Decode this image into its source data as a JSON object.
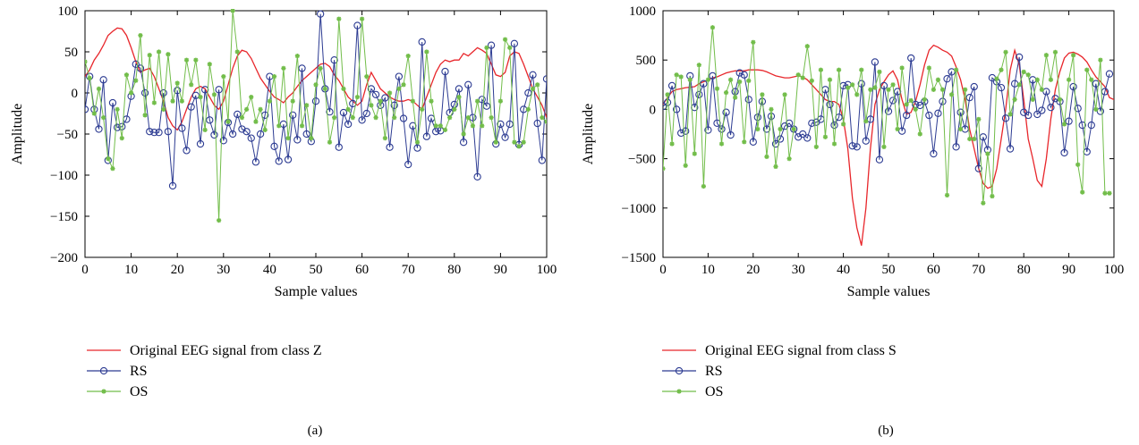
{
  "chart_data": [
    {
      "type": "line",
      "panel_label": "(a)",
      "xlabel": "Sample values",
      "ylabel": "Amplitude",
      "xlim": [
        0,
        100
      ],
      "ylim": [
        -200,
        100
      ],
      "xticks": [
        0,
        10,
        20,
        30,
        40,
        50,
        60,
        70,
        80,
        90,
        100
      ],
      "yticks": [
        -200,
        -150,
        -100,
        -50,
        0,
        50,
        100
      ],
      "xtick_labels": [
        "0",
        "10",
        "20",
        "30",
        "40",
        "50",
        "60",
        "70",
        "80",
        "90",
        "100"
      ],
      "ytick_labels": [
        "−200",
        "−150",
        "−100",
        "−50",
        "0",
        "50",
        "100"
      ],
      "grid": false,
      "legend_position": "below",
      "series": [
        {
          "name": "Original EEG signal from class Z",
          "color": "#e8262b",
          "marker": "none",
          "values": [
            20,
            28,
            40,
            48,
            58,
            70,
            75,
            79,
            78,
            70,
            55,
            38,
            25,
            28,
            30,
            20,
            5,
            -10,
            -30,
            -40,
            -45,
            -35,
            -20,
            -5,
            5,
            8,
            5,
            -5,
            -15,
            -20,
            -10,
            10,
            30,
            45,
            52,
            50,
            42,
            30,
            18,
            10,
            2,
            -5,
            -8,
            -12,
            -5,
            0,
            8,
            15,
            20,
            25,
            30,
            35,
            36,
            32,
            22,
            15,
            5,
            -5,
            -10,
            -15,
            -10,
            10,
            25,
            15,
            5,
            0,
            -5,
            -8,
            -10,
            -10,
            -8,
            -10,
            -15,
            -20,
            -5,
            10,
            25,
            35,
            40,
            38,
            40,
            40,
            48,
            45,
            50,
            55,
            52,
            48,
            35,
            22,
            20,
            25,
            45,
            50,
            48,
            35,
            20,
            5,
            -5,
            -15,
            -30
          ]
        },
        {
          "name": "RS",
          "color": "#2c3b92",
          "marker": "circle",
          "values": [
            -20,
            20,
            -20,
            -44,
            16,
            -82,
            -12,
            -42,
            -41,
            -32,
            -4,
            35,
            30,
            0,
            -47,
            -48,
            -48,
            0,
            -47,
            -113,
            3,
            -43,
            -70,
            -17,
            -3,
            -62,
            4,
            -33,
            -51,
            4,
            -58,
            -36,
            -50,
            -26,
            -44,
            -47,
            -55,
            -84,
            -50,
            -27,
            20,
            -65,
            -83,
            -38,
            -81,
            -27,
            -57,
            30,
            -50,
            -59,
            -10,
            96,
            5,
            -23,
            40,
            -66,
            -24,
            -38,
            -13,
            82,
            -33,
            -25,
            5,
            -2,
            -15,
            -6,
            -66,
            -15,
            20,
            -31,
            -87,
            -40,
            -67,
            62,
            -53,
            -31,
            -47,
            -46,
            26,
            -24,
            -14,
            5,
            -60,
            10,
            -30,
            -102,
            -8,
            -16,
            58,
            -62,
            -38,
            -54,
            -38,
            60,
            -63,
            -20,
            0,
            22,
            -37,
            -82,
            17
          ]
        },
        {
          "name": "OS",
          "color": "#72bd4a",
          "marker": "star",
          "values": [
            38,
            18,
            -25,
            5,
            -30,
            -80,
            -92,
            -20,
            -55,
            22,
            0,
            15,
            70,
            -27,
            46,
            -12,
            50,
            -20,
            47,
            -10,
            12,
            -10,
            40,
            10,
            40,
            -5,
            -45,
            35,
            -2,
            -155,
            20,
            -35,
            100,
            50,
            -30,
            -20,
            -5,
            -35,
            -20,
            -45,
            -10,
            20,
            -40,
            30,
            -55,
            -10,
            45,
            -40,
            -15,
            -55,
            10,
            30,
            5,
            -60,
            -30,
            90,
            5,
            -20,
            -30,
            -5,
            90,
            20,
            -15,
            -30,
            -10,
            -55,
            0,
            -30,
            5,
            10,
            45,
            -10,
            -60,
            -20,
            50,
            -10,
            -40,
            -40,
            -45,
            -30,
            -20,
            -5,
            -50,
            -30,
            -40,
            -10,
            -40,
            55,
            -30,
            -60,
            -10,
            65,
            55,
            -60,
            -65,
            -60,
            -20,
            5,
            10,
            -30,
            -35
          ]
        }
      ]
    },
    {
      "type": "line",
      "panel_label": "(b)",
      "xlabel": "Sample values",
      "ylabel": "Amplitude",
      "xlim": [
        0,
        100
      ],
      "ylim": [
        -1500,
        1000
      ],
      "xticks": [
        0,
        10,
        20,
        30,
        40,
        50,
        60,
        70,
        80,
        90,
        100
      ],
      "yticks": [
        -1500,
        -1000,
        -500,
        0,
        500,
        1000
      ],
      "xtick_labels": [
        "0",
        "10",
        "20",
        "30",
        "40",
        "50",
        "60",
        "70",
        "80",
        "90",
        "100"
      ],
      "ytick_labels": [
        "−1500",
        "−1000",
        "−500",
        "0",
        "500",
        "1000"
      ],
      "grid": false,
      "legend_position": "below",
      "series": [
        {
          "name": "Original EEG signal from class S",
          "color": "#e8262b",
          "marker": "none",
          "values": [
            50,
            120,
            180,
            200,
            210,
            220,
            225,
            230,
            260,
            280,
            300,
            320,
            330,
            350,
            370,
            380,
            390,
            390,
            390,
            400,
            400,
            400,
            395,
            380,
            360,
            340,
            330,
            320,
            320,
            330,
            340,
            330,
            300,
            250,
            200,
            150,
            100,
            80,
            80,
            50,
            -100,
            -400,
            -900,
            -1200,
            -1380,
            -1000,
            -400,
            50,
            200,
            280,
            350,
            390,
            300,
            100,
            -50,
            -30,
            80,
            250,
            450,
            600,
            650,
            630,
            600,
            580,
            540,
            430,
            300,
            100,
            -200,
            -400,
            -600,
            -750,
            -800,
            -780,
            -600,
            -300,
            0,
            400,
            600,
            450,
            100,
            -300,
            -500,
            -720,
            -780,
            -500,
            -100,
            200,
            380,
            520,
            570,
            580,
            560,
            530,
            480,
            400,
            330,
            280,
            230,
            120,
            100
          ]
        },
        {
          "name": "RS",
          "color": "#2c3b92",
          "marker": "circle",
          "values": [
            30,
            70,
            240,
            0,
            -240,
            -220,
            340,
            20,
            150,
            260,
            -210,
            340,
            -140,
            -200,
            -30,
            -260,
            180,
            370,
            350,
            100,
            -330,
            -80,
            80,
            -200,
            -70,
            -350,
            -300,
            -170,
            -140,
            -200,
            -280,
            -250,
            -290,
            -140,
            -130,
            -100,
            200,
            50,
            -160,
            -80,
            240,
            250,
            -370,
            -380,
            260,
            -320,
            -100,
            480,
            -510,
            240,
            -20,
            90,
            180,
            -220,
            -60,
            520,
            50,
            40,
            80,
            -60,
            -450,
            -40,
            80,
            310,
            380,
            -380,
            -30,
            -200,
            120,
            230,
            -600,
            -280,
            -410,
            320,
            280,
            220,
            -90,
            -400,
            260,
            530,
            -30,
            -60,
            300,
            -50,
            -10,
            180,
            20,
            110,
            80,
            -440,
            -120,
            230,
            10,
            -160,
            -430,
            -160,
            260,
            -20,
            180,
            360
          ]
        },
        {
          "name": "OS",
          "color": "#72bd4a",
          "marker": "star",
          "values": [
            -600,
            150,
            -350,
            350,
            330,
            -570,
            300,
            -450,
            450,
            -780,
            300,
            830,
            210,
            -350,
            170,
            300,
            120,
            280,
            -330,
            290,
            680,
            -200,
            150,
            -480,
            0,
            -580,
            -200,
            150,
            -500,
            -200,
            350,
            320,
            640,
            290,
            -380,
            400,
            -280,
            300,
            -350,
            400,
            -150,
            220,
            250,
            150,
            400,
            -120,
            200,
            220,
            380,
            -380,
            200,
            250,
            -200,
            420,
            50,
            90,
            0,
            -250,
            100,
            420,
            200,
            300,
            200,
            -870,
            150,
            400,
            -200,
            200,
            -300,
            -300,
            -100,
            -950,
            -450,
            -880,
            310,
            400,
            580,
            -50,
            100,
            250,
            380,
            350,
            100,
            300,
            200,
            550,
            300,
            580,
            100,
            -150,
            300,
            550,
            -560,
            -840,
            400,
            300,
            0,
            500,
            -850,
            -850
          ]
        }
      ]
    }
  ]
}
